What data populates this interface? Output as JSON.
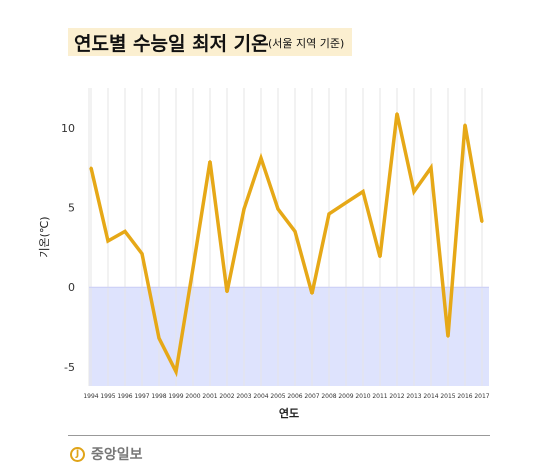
{
  "title": "연도별 수능일 최저 기온",
  "subtitle": "(서울 지역 기준)",
  "logo": {
    "mark": "J",
    "text": "중앙일보"
  },
  "chart_data": {
    "type": "line",
    "title": "연도별 수능일 최저 기온",
    "subtitle": "(서울 지역 기준)",
    "xlabel": "연도",
    "ylabel": "기온(℃)",
    "x": [
      1994,
      1995,
      1996,
      1997,
      1998,
      1999,
      2000,
      2001,
      2002,
      2003,
      2004,
      2005,
      2006,
      2007,
      2008,
      2009,
      2010,
      2011,
      2012,
      2013,
      2014,
      2015,
      2016,
      2017
    ],
    "series": [
      {
        "values": [
          7.5,
          2.9,
          3.5,
          2.1,
          -3.2,
          -5.3,
          1.2,
          7.9,
          -0.3,
          4.9,
          8.1,
          4.9,
          3.5,
          -0.4,
          4.6,
          5.3,
          6.0,
          1.9,
          10.9,
          6.0,
          7.5,
          -3.1,
          10.2,
          4.1
        ]
      }
    ],
    "yticks": [
      -5,
      0,
      5,
      10
    ],
    "ylim": [
      -6.2,
      12.5
    ],
    "negative_region_color": "#dee3fd",
    "line_color": "#e6a817",
    "grid": "vertical"
  }
}
